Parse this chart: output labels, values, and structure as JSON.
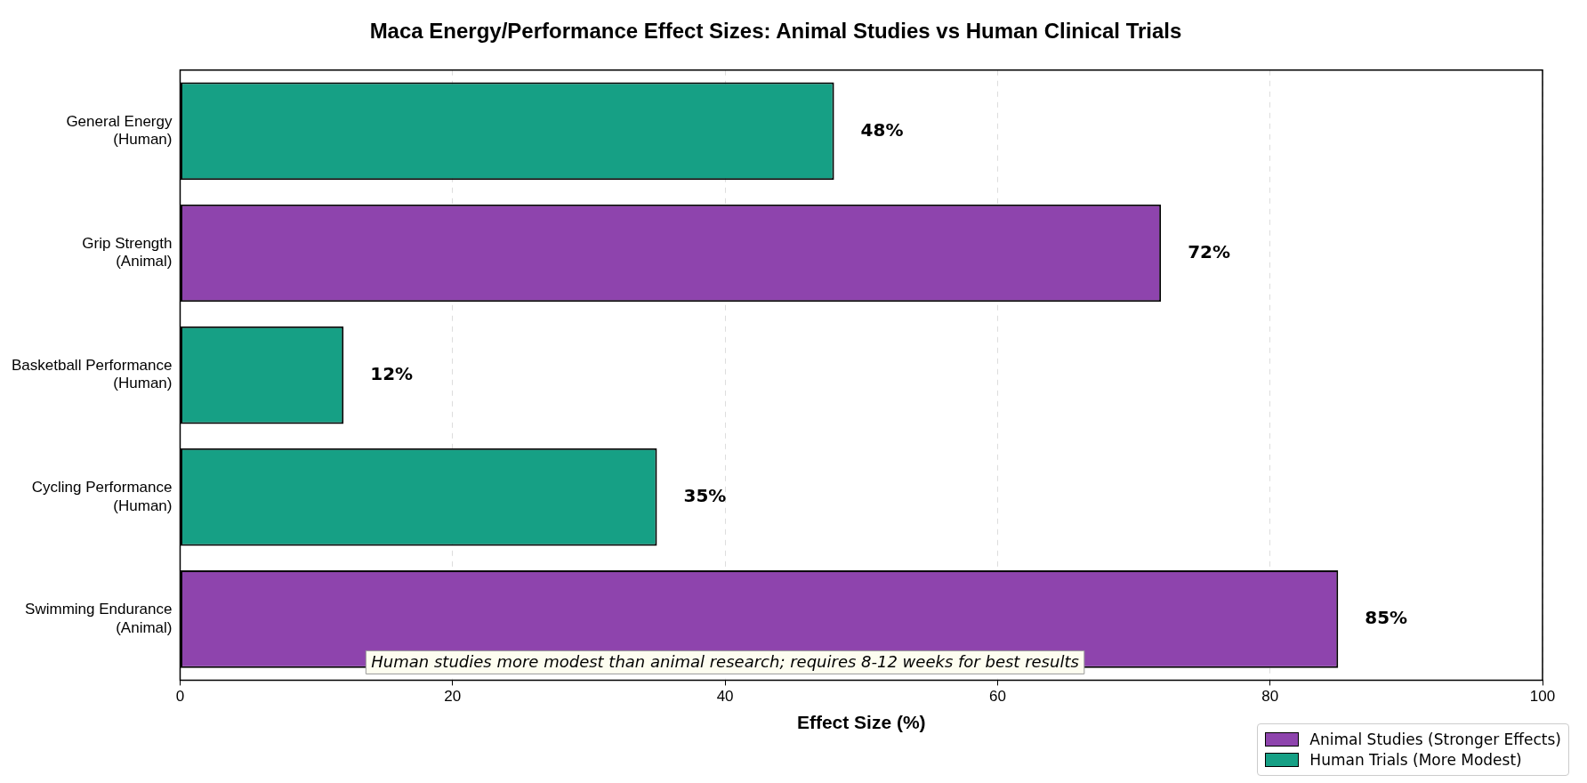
{
  "chart_data": {
    "type": "bar",
    "orientation": "horizontal",
    "title": "Maca Energy/Performance Effect Sizes: Animal Studies vs Human Clinical Trials",
    "xlabel": "Effect Size (%)",
    "categories": [
      "General Energy\n(Human)",
      "Grip Strength\n(Animal)",
      "Basketball Performance\n(Human)",
      "Cycling Performance\n(Human)",
      "Swimming Endurance\n(Animal)"
    ],
    "series": [
      {
        "name": "Animal Studies (Stronger Effects)",
        "color": "#8e44ad",
        "values": [
          null,
          72,
          null,
          null,
          85
        ],
        "value_labels": [
          null,
          "72%",
          null,
          null,
          "85%"
        ]
      },
      {
        "name": "Human Trials (More Modest)",
        "color": "#16a085",
        "values": [
          48,
          null,
          12,
          35,
          null
        ],
        "value_labels": [
          "48%",
          null,
          "12%",
          "35%",
          null
        ]
      }
    ],
    "xlim": [
      0,
      100
    ],
    "xticks": [
      0,
      20,
      40,
      60,
      80,
      100
    ],
    "grid": "x",
    "legend": "bottom right",
    "annotations": [
      "Human studies more modest than animal research; requires 8-12 weeks for best results"
    ]
  }
}
